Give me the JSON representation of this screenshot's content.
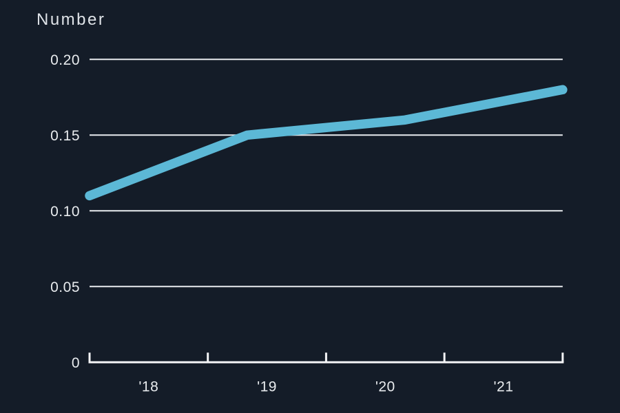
{
  "chart_data": {
    "type": "line",
    "title": "Number",
    "series": [
      {
        "name": "Number",
        "values": [
          0.11,
          0.15,
          0.16,
          0.18
        ]
      }
    ],
    "x_tick_labels": [
      "'18",
      "'19",
      "'20",
      "'21"
    ],
    "y_ticks": [
      0,
      0.05,
      0.1,
      0.15,
      0.2
    ],
    "y_tick_labels": [
      "0",
      "0.05",
      "0.10",
      "0.15",
      "0.20"
    ],
    "ylim": [
      0,
      0.2
    ],
    "grid": "horizontal-only",
    "legend": "none",
    "notes": "4 data points evenly spaced across full axis width; x ticks mark interval boundaries with year labels centered between ticks",
    "colors": {
      "background": "#141c28",
      "line": "#5cb8d6",
      "grid": "#e9ecef",
      "axis": "#f3f4f6",
      "title_text": "#dfe3e8",
      "label_text": "#e8ebee"
    }
  }
}
